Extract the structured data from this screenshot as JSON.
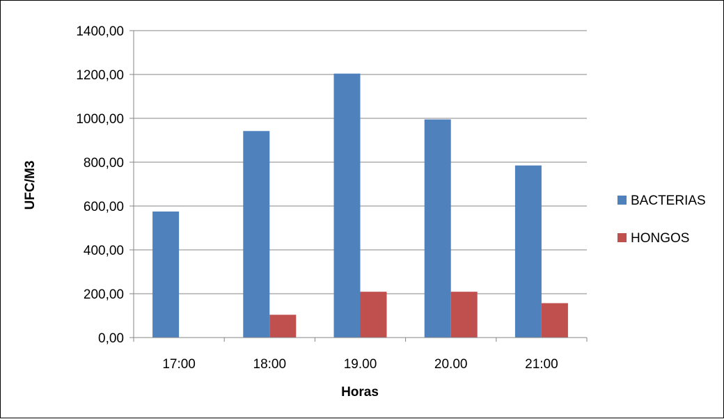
{
  "chart_data": {
    "type": "bar",
    "title": "",
    "xlabel": "Horas",
    "ylabel": "UFC/M3",
    "categories": [
      "17:00",
      "18:00",
      "19.00",
      "20.00",
      "21:00"
    ],
    "series": [
      {
        "name": "BACTERIAS",
        "color": "#4f81bd",
        "values": [
          575,
          942,
          1204,
          995,
          785
        ]
      },
      {
        "name": "HONGOS",
        "color": "#c0504d",
        "values": [
          0,
          104,
          209,
          209,
          157
        ]
      }
    ],
    "ylim": [
      0,
      1400
    ],
    "yticks": [
      0,
      200,
      400,
      600,
      800,
      1000,
      1200,
      1400
    ],
    "ytick_labels": [
      "0,00",
      "200,00",
      "400,00",
      "600,00",
      "800,00",
      "1000,00",
      "1200,00",
      "1400,00"
    ],
    "grid": true,
    "legend": "right"
  }
}
